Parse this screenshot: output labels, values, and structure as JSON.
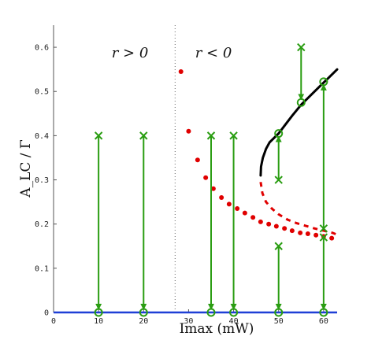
{
  "chart_data": {
    "type": "scatter",
    "title": "",
    "xlabel": "Imax  (mW)",
    "ylabel": "A_LC / Γ",
    "xlim": [
      0,
      63
    ],
    "ylim": [
      0,
      0.65
    ],
    "x_ticks": [
      "0",
      "10",
      "20",
      "30",
      "40",
      "50",
      "60"
    ],
    "y_ticks": [
      "0",
      "0.1",
      "0.2",
      "0.3",
      "0.4",
      "0.5",
      "0.6"
    ],
    "grid": false,
    "divider_x": 27,
    "region_labels": {
      "left": "r > 0",
      "right": "r < 0"
    },
    "colors": {
      "baseline": "#1f3fd6",
      "stable_branch": "#000000",
      "unstable_branch": "#e00000",
      "trajectories": "#2a9d12",
      "axes": "#555555"
    },
    "series": [
      {
        "role": "baseline",
        "x": [
          0,
          63
        ],
        "y": [
          0,
          0
        ]
      },
      {
        "role": "stable-branch",
        "x": [
          46.0,
          46.1,
          46.5,
          47.2,
          48.0,
          49.0,
          50.0,
          51.5,
          53.0,
          55.0,
          57.0,
          59.0,
          61.0,
          63.0
        ],
        "y": [
          0.31,
          0.33,
          0.35,
          0.37,
          0.385,
          0.395,
          0.405,
          0.425,
          0.445,
          0.47,
          0.49,
          0.51,
          0.53,
          0.55
        ]
      },
      {
        "role": "unstable-branch-dotted",
        "x": [
          28.3,
          30,
          32,
          33.8,
          35.5,
          37.3,
          39.0,
          40.8,
          42.5,
          44.3,
          46.0,
          47.8,
          49.5,
          51.3,
          53.0,
          54.8,
          56.5,
          58.3,
          60.0,
          61.8
        ],
        "y": [
          0.545,
          0.41,
          0.345,
          0.305,
          0.28,
          0.26,
          0.245,
          0.235,
          0.225,
          0.215,
          0.205,
          0.2,
          0.195,
          0.19,
          0.185,
          0.18,
          0.178,
          0.175,
          0.172,
          0.168
        ]
      },
      {
        "role": "unstable-branch-dashed",
        "x": [
          46.0,
          46.4,
          47.2,
          48.5,
          50.0,
          52.0,
          54.0,
          56.0,
          58.0,
          60.0,
          62.0,
          63.0
        ],
        "y": [
          0.295,
          0.27,
          0.25,
          0.235,
          0.222,
          0.21,
          0.202,
          0.196,
          0.19,
          0.185,
          0.18,
          0.176
        ]
      }
    ],
    "trajectories": [
      {
        "x": 10,
        "start": 0.4,
        "end": 0
      },
      {
        "x": 20,
        "start": 0.4,
        "end": 0
      },
      {
        "x": 35,
        "start": 0.4,
        "end": 0
      },
      {
        "x": 40,
        "start": 0.4,
        "end": 0
      },
      {
        "x": 50,
        "start": 0.15,
        "end": 0
      },
      {
        "x": 50,
        "start": 0.3,
        "end": 0.405
      },
      {
        "x": 55,
        "start": 0.6,
        "end": 0.475
      },
      {
        "x": 60,
        "start": 0.19,
        "end": 0.522
      },
      {
        "x": 60,
        "start": 0.17,
        "end": 0
      }
    ]
  }
}
